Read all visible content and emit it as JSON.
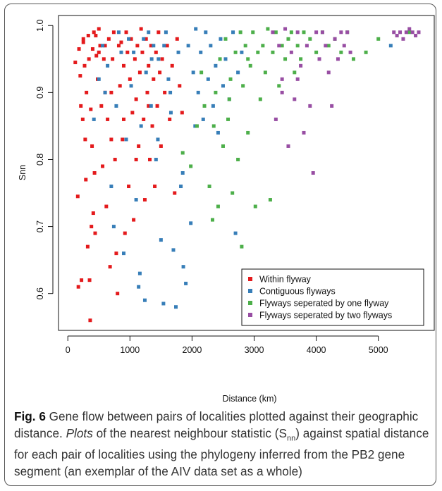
{
  "chart_data": {
    "type": "scatter",
    "title": "",
    "xlabel": "Distance (km)",
    "ylabel": "Snn",
    "xlim": [
      -150,
      5900
    ],
    "ylim": [
      0.545,
      1.015
    ],
    "x_ticks": [
      "0",
      "1000",
      "2000",
      "3000",
      "4000",
      "5000"
    ],
    "y_ticks": [
      "0.6",
      "0.7",
      "0.8",
      "0.9",
      "1.0"
    ],
    "legend_position": "bottom-right",
    "grid": false,
    "series": [
      {
        "name": "Within flyway",
        "color": "#e41a1c",
        "points": [
          [
            120,
            0.945
          ],
          [
            160,
            0.745
          ],
          [
            170,
            0.61
          ],
          [
            180,
            0.965
          ],
          [
            200,
            0.925
          ],
          [
            210,
            0.88
          ],
          [
            220,
            0.62
          ],
          [
            240,
            0.86
          ],
          [
            250,
            0.975
          ],
          [
            270,
            0.94
          ],
          [
            280,
            0.83
          ],
          [
            290,
            0.77
          ],
          [
            300,
            0.9
          ],
          [
            320,
            0.67
          ],
          [
            330,
            0.985
          ],
          [
            340,
            0.95
          ],
          [
            350,
            0.62
          ],
          [
            360,
            0.56
          ],
          [
            370,
            0.875
          ],
          [
            380,
            0.7
          ],
          [
            390,
            0.82
          ],
          [
            400,
            0.965
          ],
          [
            410,
            0.72
          ],
          [
            420,
            0.99
          ],
          [
            430,
            0.78
          ],
          [
            440,
            0.69
          ],
          [
            450,
            0.985
          ],
          [
            460,
            0.955
          ],
          [
            480,
            0.92
          ],
          [
            500,
            0.995
          ],
          [
            520,
            0.97
          ],
          [
            540,
            0.88
          ],
          [
            560,
            0.79
          ],
          [
            580,
            0.95
          ],
          [
            600,
            0.97
          ],
          [
            620,
            0.73
          ],
          [
            640,
            0.86
          ],
          [
            660,
            0.98
          ],
          [
            680,
            0.64
          ],
          [
            700,
            0.9
          ],
          [
            720,
            0.95
          ],
          [
            740,
            0.99
          ],
          [
            760,
            0.8
          ],
          [
            780,
            0.66
          ],
          [
            800,
            0.6
          ],
          [
            820,
            0.97
          ],
          [
            840,
            0.91
          ],
          [
            860,
            0.975
          ],
          [
            880,
            0.83
          ],
          [
            900,
            0.94
          ],
          [
            920,
            0.69
          ],
          [
            940,
            0.99
          ],
          [
            960,
            0.96
          ],
          [
            980,
            0.76
          ],
          [
            1000,
            0.92
          ],
          [
            1020,
            0.98
          ],
          [
            1040,
            0.87
          ],
          [
            1060,
            0.71
          ],
          [
            1080,
            0.95
          ],
          [
            1100,
            0.89
          ],
          [
            1120,
            0.97
          ],
          [
            1140,
            0.82
          ],
          [
            1160,
            0.93
          ],
          [
            1180,
            0.995
          ],
          [
            1200,
            0.96
          ],
          [
            1220,
            0.86
          ],
          [
            1240,
            0.74
          ],
          [
            1260,
            0.98
          ],
          [
            1280,
            0.9
          ],
          [
            1300,
            0.94
          ],
          [
            1320,
            0.8
          ],
          [
            1340,
            0.97
          ],
          [
            1360,
            0.85
          ],
          [
            1380,
            0.92
          ],
          [
            1400,
            0.76
          ],
          [
            1420,
            0.96
          ],
          [
            1440,
            0.88
          ],
          [
            1460,
            0.99
          ],
          [
            1480,
            0.93
          ],
          [
            1500,
            0.82
          ],
          [
            1520,
            0.95
          ],
          [
            1560,
            0.9
          ],
          [
            1600,
            0.97
          ],
          [
            1640,
            0.86
          ],
          [
            1680,
            0.94
          ],
          [
            1720,
            0.75
          ],
          [
            1760,
            0.98
          ],
          [
            1800,
            0.91
          ],
          [
            1840,
            0.87
          ],
          [
            600,
            0.9
          ],
          [
            700,
            0.83
          ],
          [
            900,
            0.86
          ],
          [
            1100,
            0.8
          ],
          [
            1300,
            0.88
          ],
          [
            500,
            0.96
          ],
          [
            250,
            0.98
          ]
        ]
      },
      {
        "name": "Contiguous flyways",
        "color": "#377eb8",
        "points": [
          [
            420,
            0.86
          ],
          [
            500,
            0.92
          ],
          [
            560,
            0.97
          ],
          [
            600,
            0.9
          ],
          [
            640,
            0.94
          ],
          [
            700,
            0.76
          ],
          [
            740,
            0.7
          ],
          [
            780,
            0.88
          ],
          [
            820,
            0.99
          ],
          [
            860,
            0.96
          ],
          [
            900,
            0.66
          ],
          [
            940,
            0.83
          ],
          [
            980,
            0.98
          ],
          [
            1020,
            0.91
          ],
          [
            1060,
            0.96
          ],
          [
            1100,
            0.74
          ],
          [
            1140,
            0.61
          ],
          [
            1160,
            0.63
          ],
          [
            1180,
            0.85
          ],
          [
            1220,
            0.98
          ],
          [
            1240,
            0.59
          ],
          [
            1260,
            0.93
          ],
          [
            1300,
            0.99
          ],
          [
            1340,
            0.88
          ],
          [
            1380,
            0.97
          ],
          [
            1420,
            0.8
          ],
          [
            1460,
            0.95
          ],
          [
            1500,
            0.68
          ],
          [
            1540,
            0.585
          ],
          [
            1580,
            0.99
          ],
          [
            1620,
            0.92
          ],
          [
            1660,
            0.87
          ],
          [
            1700,
            0.665
          ],
          [
            1740,
            0.58
          ],
          [
            1780,
            0.96
          ],
          [
            1820,
            0.76
          ],
          [
            1860,
            0.64
          ],
          [
            1900,
            0.615
          ],
          [
            1940,
            0.97
          ],
          [
            1980,
            0.705
          ],
          [
            2020,
            0.93
          ],
          [
            2060,
            0.995
          ],
          [
            2100,
            0.9
          ],
          [
            2140,
            0.96
          ],
          [
            2180,
            0.86
          ],
          [
            2220,
            0.99
          ],
          [
            2260,
            0.92
          ],
          [
            2300,
            0.97
          ],
          [
            2340,
            0.88
          ],
          [
            2380,
            0.94
          ],
          [
            2420,
            0.84
          ],
          [
            2460,
            0.98
          ],
          [
            2500,
            0.91
          ],
          [
            2540,
            0.95
          ],
          [
            2600,
            0.89
          ],
          [
            2660,
            0.99
          ],
          [
            2700,
            0.69
          ],
          [
            2740,
            0.93
          ],
          [
            2800,
            0.96
          ],
          [
            5200,
            0.97
          ],
          [
            1450,
            0.83
          ],
          [
            1650,
            0.9
          ],
          [
            1850,
            0.78
          ],
          [
            2050,
            0.85
          ],
          [
            1350,
            0.95
          ],
          [
            1550,
            0.97
          ]
        ]
      },
      {
        "name": "Flyways seperated by one flyway",
        "color": "#4daf4a",
        "points": [
          [
            1850,
            0.81
          ],
          [
            1980,
            0.79
          ],
          [
            2080,
            0.85
          ],
          [
            2150,
            0.93
          ],
          [
            2200,
            0.88
          ],
          [
            2280,
            0.76
          ],
          [
            2330,
            0.71
          ],
          [
            2380,
            0.9
          ],
          [
            2420,
            0.73
          ],
          [
            2450,
            0.95
          ],
          [
            2500,
            0.82
          ],
          [
            2540,
            0.98
          ],
          [
            2580,
            0.86
          ],
          [
            2620,
            0.92
          ],
          [
            2650,
            0.75
          ],
          [
            2700,
            0.96
          ],
          [
            2740,
            0.8
          ],
          [
            2780,
            0.99
          ],
          [
            2800,
            0.67
          ],
          [
            2820,
            0.91
          ],
          [
            2860,
            0.97
          ],
          [
            2900,
            0.84
          ],
          [
            2940,
            0.94
          ],
          [
            2980,
            0.99
          ],
          [
            3020,
            0.73
          ],
          [
            3060,
            0.96
          ],
          [
            3100,
            0.89
          ],
          [
            3140,
            0.97
          ],
          [
            3180,
            0.93
          ],
          [
            3220,
            0.995
          ],
          [
            3260,
            0.74
          ],
          [
            3300,
            0.96
          ],
          [
            3350,
            0.99
          ],
          [
            3400,
            0.91
          ],
          [
            3450,
            0.97
          ],
          [
            3500,
            0.95
          ],
          [
            3550,
            0.98
          ],
          [
            3600,
            0.99
          ],
          [
            3650,
            0.93
          ],
          [
            3700,
            0.97
          ],
          [
            3750,
            0.95
          ],
          [
            3800,
            0.99
          ],
          [
            3900,
            0.98
          ],
          [
            4000,
            0.96
          ],
          [
            4100,
            0.99
          ],
          [
            4200,
            0.97
          ],
          [
            4300,
            0.98
          ],
          [
            4400,
            0.96
          ],
          [
            4500,
            0.99
          ],
          [
            4600,
            0.95
          ],
          [
            4800,
            0.96
          ],
          [
            5000,
            0.98
          ],
          [
            5500,
            0.99
          ],
          [
            2350,
            0.85
          ],
          [
            2600,
            0.89
          ],
          [
            2900,
            0.95
          ]
        ]
      },
      {
        "name": "Flyways seperated by two flyways",
        "color": "#984ea3",
        "points": [
          [
            3300,
            0.99
          ],
          [
            3350,
            0.86
          ],
          [
            3400,
            0.97
          ],
          [
            3450,
            0.92
          ],
          [
            3500,
            0.995
          ],
          [
            3550,
            0.82
          ],
          [
            3600,
            0.96
          ],
          [
            3650,
            0.89
          ],
          [
            3700,
            0.99
          ],
          [
            3750,
            0.94
          ],
          [
            3800,
            0.84
          ],
          [
            3850,
            0.97
          ],
          [
            3900,
            0.88
          ],
          [
            3950,
            0.78
          ],
          [
            4000,
            0.99
          ],
          [
            4050,
            0.95
          ],
          [
            4100,
            0.99
          ],
          [
            4150,
            0.97
          ],
          [
            4200,
            0.93
          ],
          [
            4250,
            0.88
          ],
          [
            4300,
            0.98
          ],
          [
            4350,
            0.95
          ],
          [
            4400,
            0.99
          ],
          [
            4450,
            0.97
          ],
          [
            4500,
            0.99
          ],
          [
            4550,
            0.96
          ],
          [
            5250,
            0.99
          ],
          [
            5300,
            0.985
          ],
          [
            5350,
            0.99
          ],
          [
            5400,
            0.98
          ],
          [
            5450,
            0.99
          ],
          [
            5500,
            0.995
          ],
          [
            5550,
            0.99
          ],
          [
            5600,
            0.985
          ],
          [
            5650,
            0.99
          ],
          [
            3450,
            0.9
          ],
          [
            3700,
            0.92
          ]
        ]
      }
    ]
  },
  "caption": {
    "label": "Fig. 6",
    "part1": " Gene flow between pairs of localities plotted against their geographic distance. ",
    "italic": "Plots",
    "part2": " of the nearest neighbour statistic (S",
    "sub": "nn",
    "part3": ") against spatial distance for each pair of localities using the phylogeny inferred from the PB2 gene segment (an exemplar of the AIV data set as a whole)"
  }
}
